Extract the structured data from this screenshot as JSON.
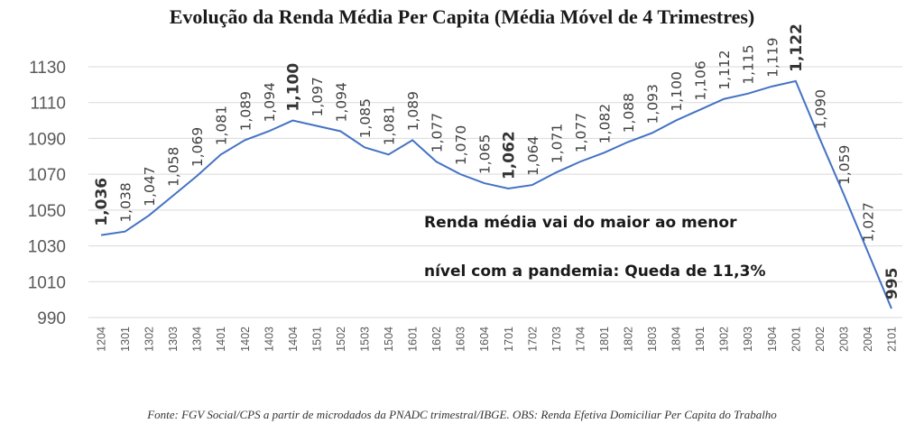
{
  "chart_data": {
    "type": "line",
    "title": "Evolução da Renda Média Per Capita (Média Móvel de 4 Trimestres)",
    "xlabel": "",
    "ylabel": "",
    "ylim": [
      990,
      1130
    ],
    "yticks": [
      990,
      1010,
      1030,
      1050,
      1070,
      1090,
      1110,
      1130
    ],
    "grid": true,
    "line_color": "#4472C4",
    "categories": [
      "1204",
      "1301",
      "1302",
      "1303",
      "1304",
      "1401",
      "1402",
      "1403",
      "1404",
      "1501",
      "1502",
      "1503",
      "1504",
      "1601",
      "1602",
      "1603",
      "1604",
      "1701",
      "1702",
      "1703",
      "1704",
      "1801",
      "1802",
      "1803",
      "1804",
      "1901",
      "1902",
      "1903",
      "1904",
      "2001",
      "2002",
      "2003",
      "2004",
      "2101"
    ],
    "values": [
      1036,
      1038,
      1047,
      1058,
      1069,
      1081,
      1089,
      1094,
      1100,
      1097,
      1094,
      1085,
      1081,
      1089,
      1077,
      1070,
      1065,
      1062,
      1064,
      1071,
      1077,
      1082,
      1088,
      1093,
      1100,
      1106,
      1112,
      1115,
      1119,
      1122,
      1090,
      1059,
      1027,
      995
    ],
    "data_labels": [
      "1,036",
      "1,038",
      "1,047",
      "1,058",
      "1,069",
      "1,081",
      "1,089",
      "1,094",
      "1,100",
      "1,097",
      "1,094",
      "1,085",
      "1,081",
      "1,089",
      "1,077",
      "1,070",
      "1,065",
      "1,062",
      "1,064",
      "1,071",
      "1,077",
      "1,082",
      "1,088",
      "1,093",
      "1,100",
      "1,106",
      "1,112",
      "1,115",
      "1,119",
      "1,122",
      "1,090",
      "1,059",
      "1,027",
      "995"
    ],
    "bold_labels": [
      0,
      8,
      17,
      29,
      33
    ],
    "annotations": [
      "Renda média vai do maior ao menor",
      "nível com a pandemia: Queda de 11,3%"
    ]
  },
  "source": "Fonte: FGV Social/CPS a partir de microdados da PNADC trimestral/IBGE. OBS: Renda Efetiva Domiciliar Per Capita do Trabalho"
}
